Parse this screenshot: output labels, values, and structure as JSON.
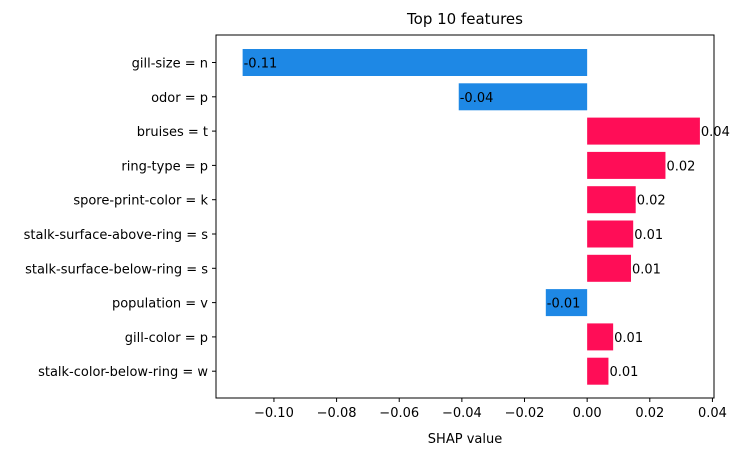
{
  "chart_data": {
    "type": "bar",
    "orientation": "horizontal",
    "title": "Top 10 features",
    "xlabel": "SHAP value",
    "ylabel": "",
    "xlim": [
      -0.1185,
      0.0405
    ],
    "xticks": [
      -0.1,
      -0.08,
      -0.06,
      -0.04,
      -0.02,
      0.0,
      0.02,
      0.04
    ],
    "xtick_labels": [
      "−0.10",
      "−0.08",
      "−0.06",
      "−0.04",
      "−0.02",
      "0.00",
      "0.02",
      "0.04"
    ],
    "grid": false,
    "legend": "none",
    "colors": {
      "positive": "#ff0d57",
      "negative": "#1e88e5"
    },
    "bars": [
      {
        "feature": "gill-size = n",
        "value": -0.11,
        "label": "-0.11"
      },
      {
        "feature": "odor = p",
        "value": -0.041,
        "label": "-0.04"
      },
      {
        "feature": "bruises = t",
        "value": 0.036,
        "label": "0.04"
      },
      {
        "feature": "ring-type = p",
        "value": 0.025,
        "label": "0.02"
      },
      {
        "feature": "spore-print-color = k",
        "value": 0.0155,
        "label": "0.02"
      },
      {
        "feature": "stalk-surface-above-ring = s",
        "value": 0.0147,
        "label": "0.01"
      },
      {
        "feature": "stalk-surface-below-ring = s",
        "value": 0.014,
        "label": "0.01"
      },
      {
        "feature": "population = v",
        "value": -0.0132,
        "label": "-0.01"
      },
      {
        "feature": "gill-color = p",
        "value": 0.0083,
        "label": "0.01"
      },
      {
        "feature": "stalk-color-below-ring = w",
        "value": 0.0068,
        "label": "0.01"
      }
    ]
  }
}
